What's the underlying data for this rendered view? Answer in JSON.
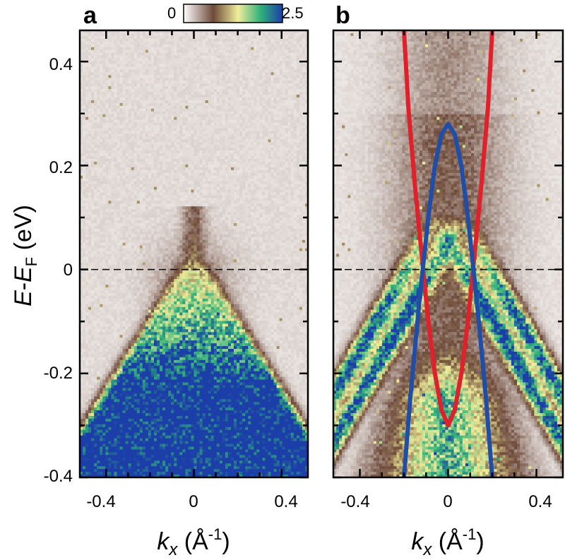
{
  "colorbar": {
    "min_label": "0",
    "max_label": "2.5",
    "range": [
      0,
      2.5
    ],
    "stops": [
      "#ffffff",
      "#6e4a3a",
      "#f0ee9a",
      "#2fb07a",
      "#1c3ea8"
    ]
  },
  "ylabel": {
    "main": "E",
    "dash": "-",
    "sub_main": "E",
    "subscript": "F",
    "unit": " (eV)"
  },
  "xlabel": {
    "main": "k",
    "subscript": "x",
    "unit_open": " (Å",
    "superscript": "-1",
    "unit_close": ")"
  },
  "chart_data": [
    {
      "type": "heatmap",
      "panel_label": "a",
      "xlim": [
        -0.52,
        0.52
      ],
      "ylim": [
        -0.4,
        0.46
      ],
      "xticks": [
        "-0.4",
        "0",
        "0.4"
      ],
      "yticks": [
        "0.4",
        "0.2",
        "0",
        "-0.2",
        "-0.4"
      ],
      "fermi_level_line": 0,
      "intensity_model": {
        "description": "hole-like band dispersion, intensity confined below E_F",
        "band_top": 0.02,
        "velocity": 0.7
      }
    },
    {
      "type": "heatmap",
      "panel_label": "b",
      "xlim": [
        -0.52,
        0.52
      ],
      "ylim": [
        -0.4,
        0.46
      ],
      "xticks": [
        "-0.4",
        "0",
        "0.4"
      ],
      "fermi_level_line": 0,
      "series": [
        {
          "color": "#e0202a",
          "x": [
            -0.2,
            -0.18,
            -0.15,
            -0.12,
            -0.09,
            -0.06,
            -0.03,
            0.0,
            0.03,
            0.06,
            0.09,
            0.12,
            0.15,
            0.18,
            0.2
          ],
          "y": [
            0.46,
            0.31,
            0.16,
            0.03,
            -0.1,
            -0.2,
            -0.27,
            -0.3,
            -0.27,
            -0.2,
            -0.1,
            0.03,
            0.16,
            0.31,
            0.46
          ]
        },
        {
          "color": "#1f4ea8",
          "x": [
            -0.2,
            -0.17,
            -0.13,
            -0.09,
            -0.06,
            -0.03,
            0.0,
            0.03,
            0.06,
            0.09,
            0.13,
            0.17,
            0.2
          ],
          "y": [
            -0.4,
            -0.24,
            -0.06,
            0.1,
            0.2,
            0.26,
            0.28,
            0.26,
            0.2,
            0.1,
            -0.06,
            -0.24,
            -0.4
          ]
        }
      ]
    }
  ]
}
